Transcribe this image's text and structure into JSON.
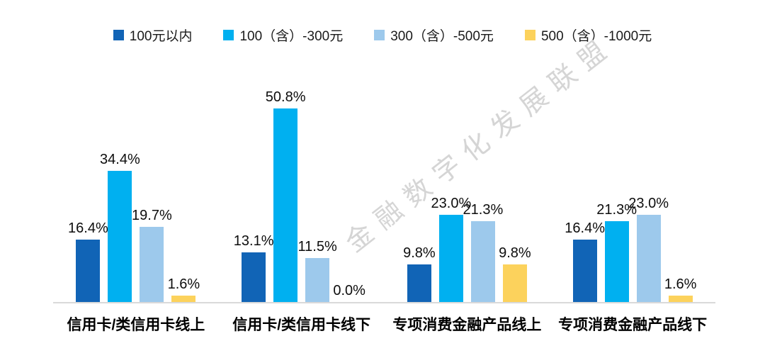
{
  "watermark": "金融数字化发展联盟",
  "chart_data": {
    "type": "bar",
    "title": "",
    "xlabel": "",
    "ylabel": "",
    "grid": false,
    "legend_position": "top",
    "value_labels": true,
    "value_label_format": "#.0%",
    "ylim": [
      0,
      55
    ],
    "categories": [
      "信用卡/类信用卡线上",
      "信用卡/类信用卡线下",
      "专项消费金融产品线上",
      "专项消费金融产品线下"
    ],
    "series": [
      {
        "name": "100元以内",
        "color": "#1164b6",
        "values": [
          16.4,
          13.1,
          9.8,
          16.4
        ]
      },
      {
        "name": "100（含）-300元",
        "color": "#00b0f0",
        "values": [
          34.4,
          50.8,
          23.0,
          21.3
        ]
      },
      {
        "name": "300（含）-500元",
        "color": "#9dc9ec",
        "values": [
          19.7,
          11.5,
          21.3,
          23.0
        ]
      },
      {
        "name": "500（含）-1000元",
        "color": "#fcd25c",
        "values": [
          1.6,
          0.0,
          9.8,
          1.6
        ]
      }
    ],
    "axis_line_color": "#d9d9d9"
  }
}
